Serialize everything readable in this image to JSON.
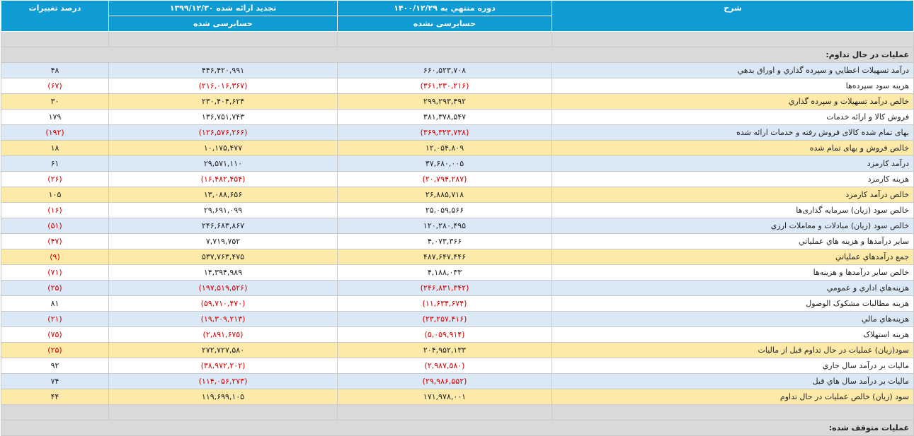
{
  "header": {
    "desc": "شرح",
    "current_period": "دوره منتهي به ۱۴۰۰/۱۲/۲۹",
    "current_status": "حسابرسی نشده",
    "prev_period": "تجدید ارائه شده ۱۳۹۹/۱۲/۳۰",
    "prev_status": "حسابرسی شده",
    "pct": "درصد تغییرات"
  },
  "sections": {
    "continuing": "عملیات در حال تداوم:",
    "discontinued": "عملیات متوقف شده:"
  },
  "rows": [
    {
      "label": "درآمد تسهيلات اعطايي و سپرده گذاري و اوراق بدهي",
      "cur": "۶۶۰,۵۲۳,۷۰۸",
      "prev": "۴۴۶,۴۲۰,۹۹۱",
      "pct": "۴۸",
      "cur_neg": false,
      "prev_neg": false,
      "pct_neg": false,
      "style": "even"
    },
    {
      "label": "هزينه سود سپرده‌ها",
      "cur": "(۳۶۱,۲۳۰,۲۱۶)",
      "prev": "(۲۱۶,۰۱۶,۳۶۷)",
      "pct": "(۶۷)",
      "cur_neg": true,
      "prev_neg": true,
      "pct_neg": true,
      "style": "odd"
    },
    {
      "label": "خالص درآمد تسهيلات و سپرده گذاري",
      "cur": "۲۹۹,۲۹۳,۴۹۲",
      "prev": "۲۳۰,۴۰۴,۶۲۴",
      "pct": "۳۰",
      "cur_neg": false,
      "prev_neg": false,
      "pct_neg": false,
      "style": "sum"
    },
    {
      "label": "فروش کالا و ارائه خدمات",
      "cur": "۳۸۱,۳۷۸,۵۴۷",
      "prev": "۱۳۶,۷۵۱,۷۴۳",
      "pct": "۱۷۹",
      "cur_neg": false,
      "prev_neg": false,
      "pct_neg": false,
      "style": "odd"
    },
    {
      "label": "بهای تمام شده کالای فروش رفته و خدمات ارائه شده",
      "cur": "(۳۶۹,۳۲۳,۷۳۸)",
      "prev": "(۱۲۶,۵۷۶,۲۶۶)",
      "pct": "(۱۹۲)",
      "cur_neg": true,
      "prev_neg": true,
      "pct_neg": true,
      "style": "even"
    },
    {
      "label": "خالص فروش و بهای تمام شده",
      "cur": "۱۲,۰۵۴,۸۰۹",
      "prev": "۱۰,۱۷۵,۴۷۷",
      "pct": "۱۸",
      "cur_neg": false,
      "prev_neg": false,
      "pct_neg": false,
      "style": "sum"
    },
    {
      "label": "درآمد کارمزد",
      "cur": "۴۷,۶۸۰,۰۰۵",
      "prev": "۲۹,۵۷۱,۱۱۰",
      "pct": "۶۱",
      "cur_neg": false,
      "prev_neg": false,
      "pct_neg": false,
      "style": "even"
    },
    {
      "label": "هزينه کارمزد",
      "cur": "(۲۰,۷۹۴,۲۸۷)",
      "prev": "(۱۶,۴۸۲,۴۵۴)",
      "pct": "(۲۶)",
      "cur_neg": true,
      "prev_neg": true,
      "pct_neg": true,
      "style": "odd"
    },
    {
      "label": "خالص درآمد کارمزد",
      "cur": "۲۶,۸۸۵,۷۱۸",
      "prev": "۱۳,۰۸۸,۶۵۶",
      "pct": "۱۰۵",
      "cur_neg": false,
      "prev_neg": false,
      "pct_neg": false,
      "style": "sum"
    },
    {
      "label": "خالص سود (زيان) سرمايه گذاری‌ها",
      "cur": "۲۵,۰۵۹,۵۶۶",
      "prev": "۲۹,۶۹۱,۰۹۹",
      "pct": "(۱۶)",
      "cur_neg": false,
      "prev_neg": false,
      "pct_neg": true,
      "style": "odd"
    },
    {
      "label": "خالص سود (زيان) مبادلات و معاملات ارزي",
      "cur": "۱۲۰,۲۸۰,۴۹۵",
      "prev": "۲۴۶,۶۸۳,۸۶۷",
      "pct": "(۵۱)",
      "cur_neg": false,
      "prev_neg": false,
      "pct_neg": true,
      "style": "even"
    },
    {
      "label": "ساير درآمدها و هزينه هاي عملياتي",
      "cur": "۴,۰۷۳,۳۶۶",
      "prev": "۷,۷۱۹,۷۵۲",
      "pct": "(۴۷)",
      "cur_neg": false,
      "prev_neg": false,
      "pct_neg": true,
      "style": "odd"
    },
    {
      "label": "جمع درآمدهاي عملياتي",
      "cur": "۴۸۷,۶۴۷,۴۴۶",
      "prev": "۵۳۷,۷۶۳,۴۷۵",
      "pct": "(۹)",
      "cur_neg": false,
      "prev_neg": false,
      "pct_neg": true,
      "style": "sum"
    },
    {
      "label": "خالص ساير درآمدها و هزينه‌ها",
      "cur": "۴,۱۸۸,۰۳۳",
      "prev": "۱۴,۳۹۴,۹۸۹",
      "pct": "(۷۱)",
      "cur_neg": false,
      "prev_neg": false,
      "pct_neg": true,
      "style": "odd"
    },
    {
      "label": "هزينه‌هاي اداري و عمومي",
      "cur": "(۲۴۶,۸۳۱,۳۴۲)",
      "prev": "(۱۹۷,۵۱۹,۵۲۶)",
      "pct": "(۲۵)",
      "cur_neg": true,
      "prev_neg": true,
      "pct_neg": true,
      "style": "even"
    },
    {
      "label": "هزينه مطالبات مشکوک الوصول",
      "cur": "(۱۱,۶۳۴,۶۷۴)",
      "prev": "(۵۹,۷۱۰,۴۷۰)",
      "pct": "۸۱",
      "cur_neg": true,
      "prev_neg": true,
      "pct_neg": false,
      "style": "odd"
    },
    {
      "label": "هزينه‌هاي مالي",
      "cur": "(۲۳,۲۵۷,۴۱۶)",
      "prev": "(۱۹,۳۰۹,۲۱۳)",
      "pct": "(۲۱)",
      "cur_neg": true,
      "prev_neg": true,
      "pct_neg": true,
      "style": "even"
    },
    {
      "label": "هزينه استهلاک",
      "cur": "(۵,۰۵۹,۹۱۴)",
      "prev": "(۲,۸۹۱,۶۷۵)",
      "pct": "(۷۵)",
      "cur_neg": true,
      "prev_neg": true,
      "pct_neg": true,
      "style": "odd"
    },
    {
      "label": "سود(زيان) عمليات در حال تداوم قبل از ماليات",
      "cur": "۲۰۴,۹۵۲,۱۳۳",
      "prev": "۲۷۲,۷۲۷,۵۸۰",
      "pct": "(۲۵)",
      "cur_neg": false,
      "prev_neg": false,
      "pct_neg": true,
      "style": "sum"
    },
    {
      "label": "ماليات بر درآمد سال جاري",
      "cur": "(۲,۹۸۷,۵۸۰)",
      "prev": "(۳۸,۹۷۲,۲۰۲)",
      "pct": "۹۲",
      "cur_neg": true,
      "prev_neg": true,
      "pct_neg": false,
      "style": "odd"
    },
    {
      "label": "ماليات بر درآمد سال هاي قبل",
      "cur": "(۲۹,۹۸۶,۵۵۲)",
      "prev": "(۱۱۴,۰۵۶,۲۷۳)",
      "pct": "۷۴",
      "cur_neg": true,
      "prev_neg": true,
      "pct_neg": false,
      "style": "even"
    },
    {
      "label": "سود (زيان) خالص عمليات در حال تداوم",
      "cur": "۱۷۱,۹۷۸,۰۰۱",
      "prev": "۱۱۹,۶۹۹,۱۰۵",
      "pct": "۴۴",
      "cur_neg": false,
      "prev_neg": false,
      "pct_neg": false,
      "style": "sum"
    }
  ]
}
